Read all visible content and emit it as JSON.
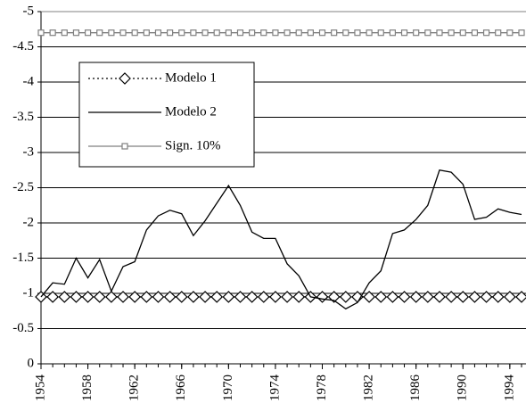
{
  "chart_data": {
    "type": "line",
    "x": [
      1954,
      1955,
      1956,
      1957,
      1958,
      1959,
      1960,
      1961,
      1962,
      1963,
      1964,
      1965,
      1966,
      1967,
      1968,
      1969,
      1970,
      1971,
      1972,
      1973,
      1974,
      1975,
      1976,
      1977,
      1978,
      1979,
      1980,
      1981,
      1982,
      1983,
      1984,
      1985,
      1986,
      1987,
      1988,
      1989,
      1990,
      1991,
      1992,
      1993,
      1994,
      1995
    ],
    "series": [
      {
        "name": "Modelo 1",
        "color": "#000000",
        "line_style": "dotted",
        "marker": "diamond",
        "values": [
          -0.95,
          -0.95,
          -0.95,
          -0.95,
          -0.95,
          -0.95,
          -0.95,
          -0.95,
          -0.95,
          -0.95,
          -0.95,
          -0.95,
          -0.95,
          -0.95,
          -0.95,
          -0.95,
          -0.95,
          -0.95,
          -0.95,
          -0.95,
          -0.95,
          -0.95,
          -0.95,
          -0.95,
          -0.95,
          -0.95,
          -0.95,
          -0.95,
          -0.95,
          -0.95,
          -0.95,
          -0.95,
          -0.95,
          -0.95,
          -0.95,
          -0.95,
          -0.95,
          -0.95,
          -0.95,
          -0.95,
          -0.95,
          -0.95
        ]
      },
      {
        "name": "Modelo 2",
        "color": "#000000",
        "line_style": "solid",
        "marker": "none",
        "values": [
          -0.95,
          -1.15,
          -1.13,
          -1.5,
          -1.22,
          -1.48,
          -1.03,
          -1.38,
          -1.45,
          -1.9,
          -2.1,
          -2.18,
          -2.13,
          -1.82,
          -2.03,
          -2.28,
          -2.53,
          -2.25,
          -1.87,
          -1.78,
          -1.78,
          -1.42,
          -1.25,
          -0.95,
          -0.92,
          -0.9,
          -0.78,
          -0.87,
          -1.15,
          -1.32,
          -1.85,
          -1.9,
          -2.05,
          -2.25,
          -2.75,
          -2.72,
          -2.55,
          -2.05,
          -2.08,
          -2.2,
          -2.15,
          -2.12
        ]
      },
      {
        "name": "Sign. 10%",
        "color": "#808080",
        "line_style": "solid",
        "marker": "square",
        "values": [
          -4.7,
          -4.7,
          -4.7,
          -4.7,
          -4.7,
          -4.7,
          -4.7,
          -4.7,
          -4.7,
          -4.7,
          -4.7,
          -4.7,
          -4.7,
          -4.7,
          -4.7,
          -4.7,
          -4.7,
          -4.7,
          -4.7,
          -4.7,
          -4.7,
          -4.7,
          -4.7,
          -4.7,
          -4.7,
          -4.7,
          -4.7,
          -4.7,
          -4.7,
          -4.7,
          -4.7,
          -4.7,
          -4.7,
          -4.7,
          -4.7,
          -4.7,
          -4.7,
          -4.7,
          -4.7,
          -4.7,
          -4.7,
          -4.7
        ]
      }
    ],
    "xlim": [
      1954,
      1995
    ],
    "xticks": [
      1954,
      1958,
      1962,
      1966,
      1970,
      1974,
      1978,
      1982,
      1986,
      1990,
      1994
    ],
    "ylim": [
      0,
      -5
    ],
    "yticks": [
      0,
      -0.5,
      -1,
      -1.5,
      -2,
      -2.5,
      -3,
      -3.5,
      -4,
      -4.5,
      -5
    ],
    "grid": true,
    "legend": "upper left"
  }
}
